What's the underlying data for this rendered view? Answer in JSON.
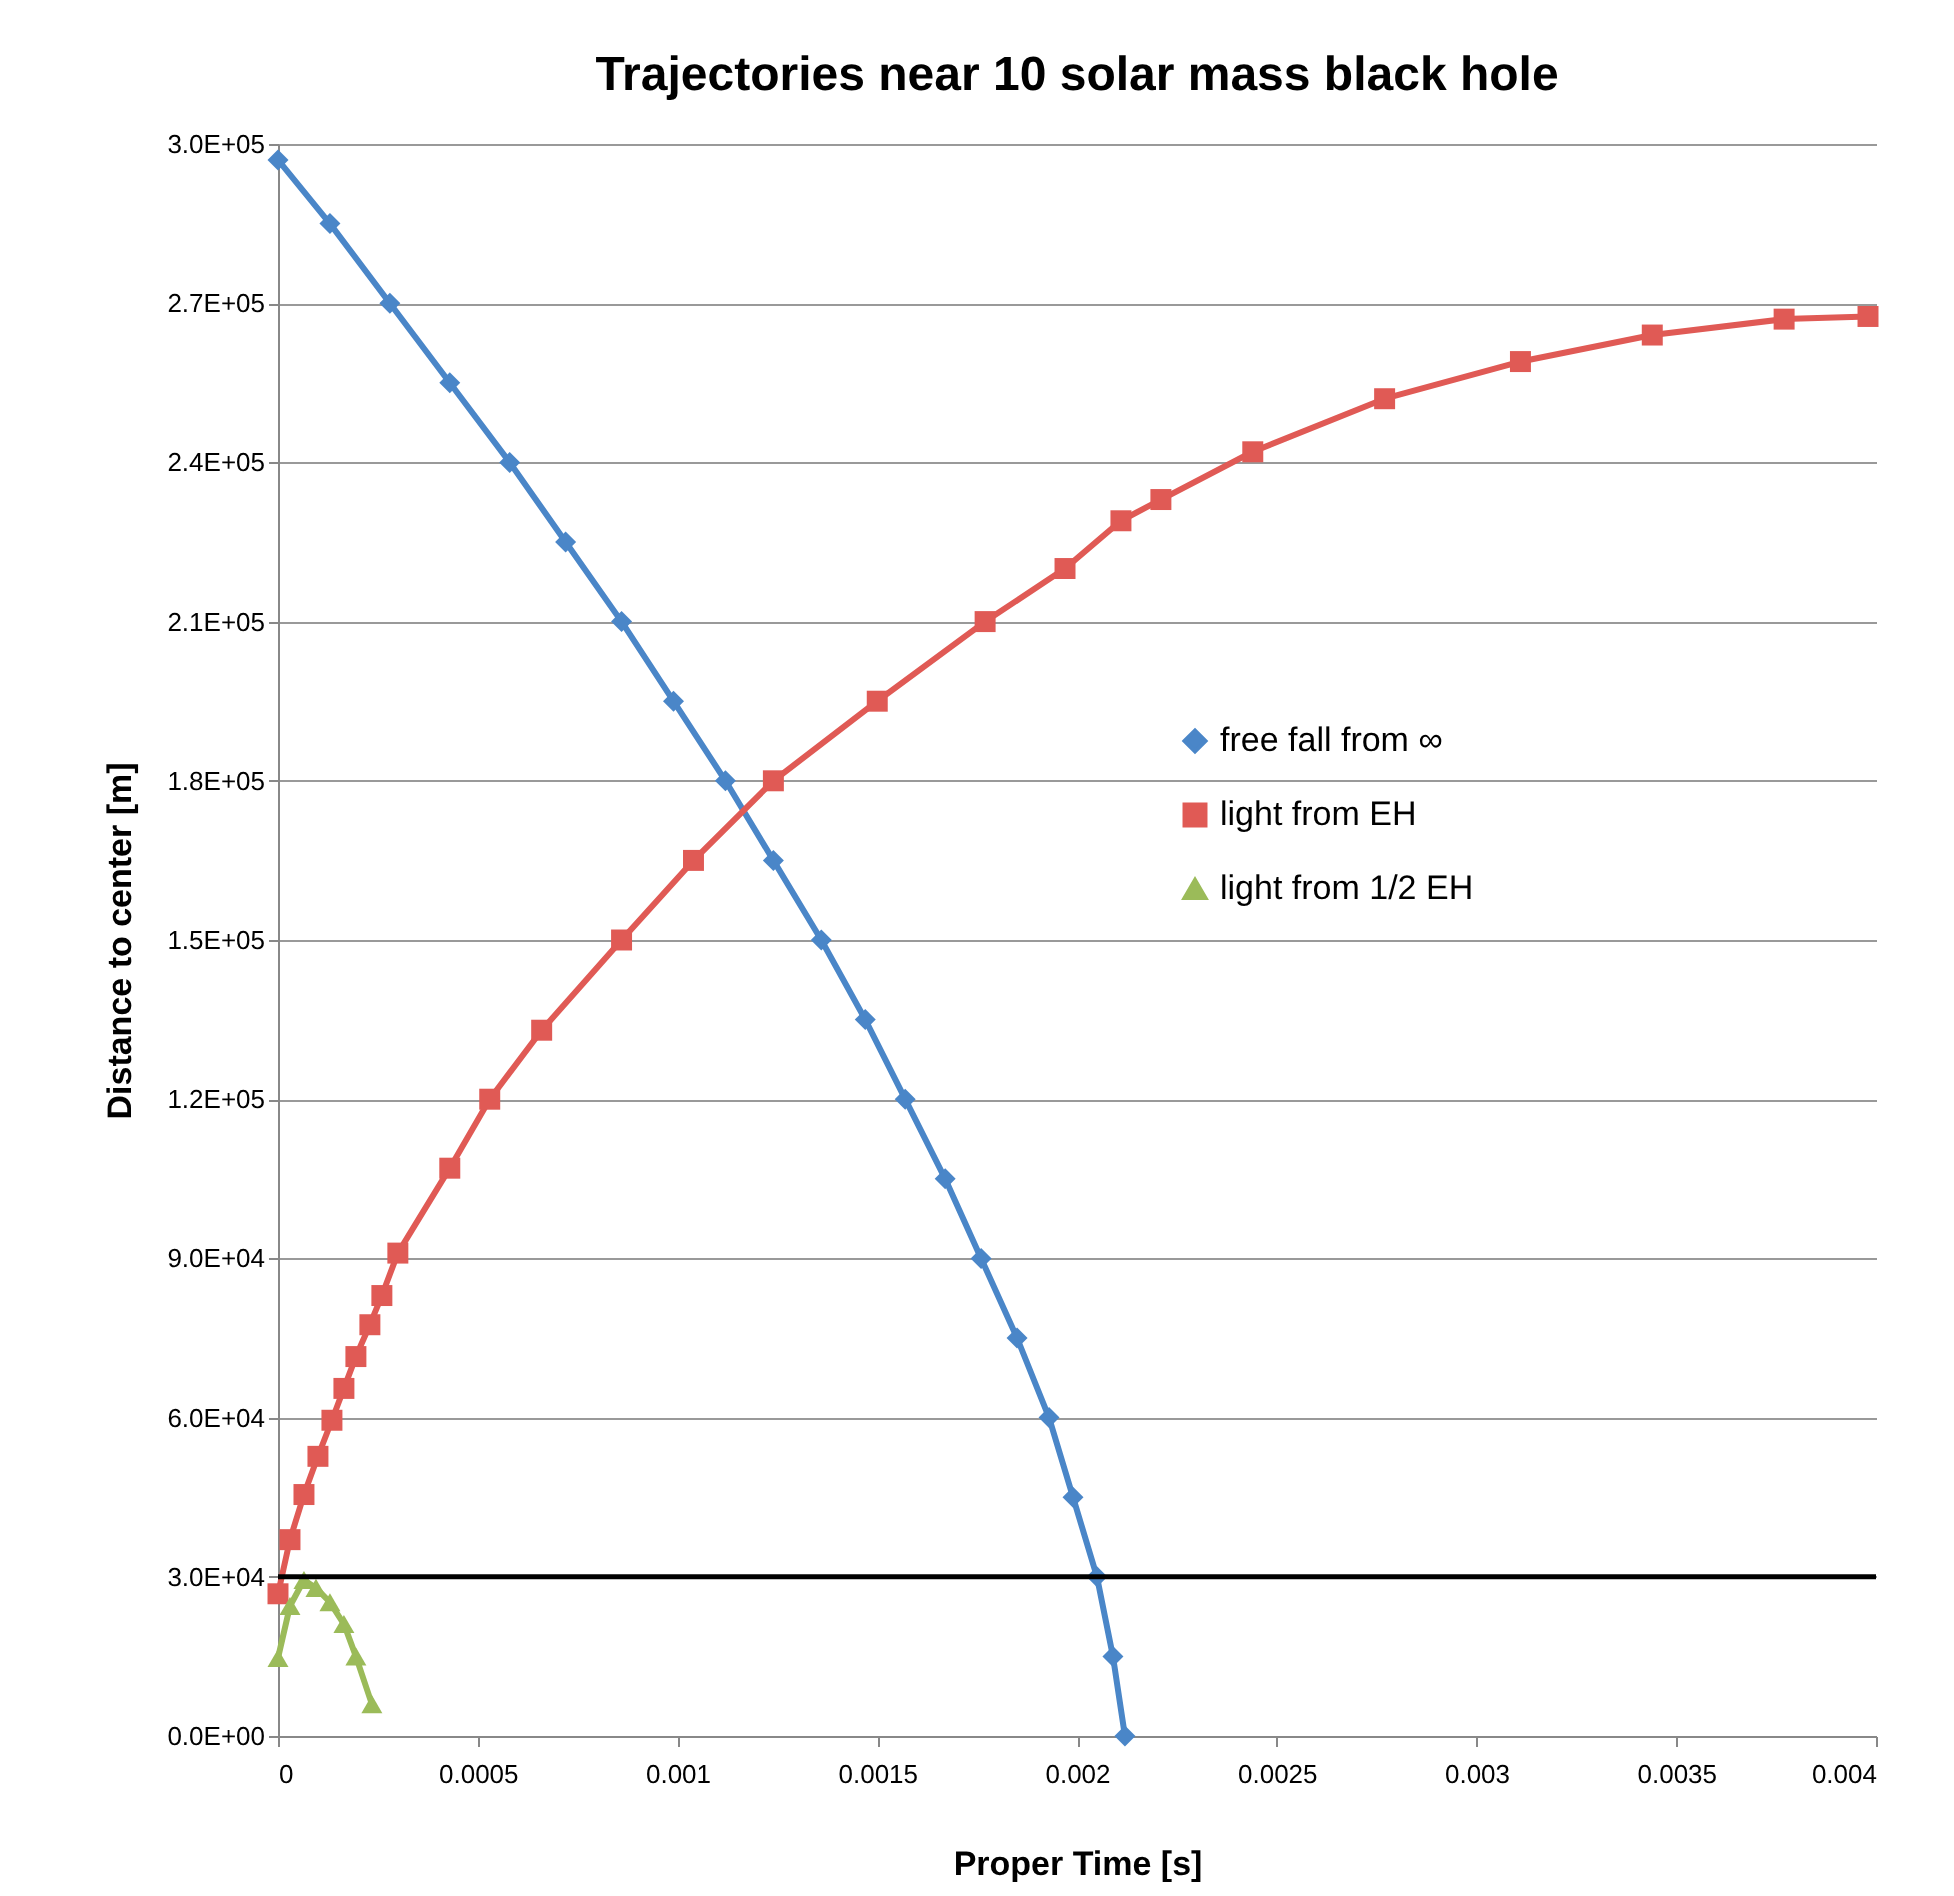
{
  "chart_data": {
    "type": "line",
    "title": "Trajectories near 10 solar mass black hole",
    "xlabel": "Proper Time [s]",
    "ylabel": "Distance to center [m]",
    "xlim": [
      0,
      0.004
    ],
    "xticks": [
      0,
      0.0005,
      0.001,
      0.0015,
      0.002,
      0.0025,
      0.003,
      0.0035,
      0.004
    ],
    "ylim": [
      0,
      300000
    ],
    "yticks": [
      {
        "value": 0,
        "label": "0.0E+00"
      },
      {
        "value": 30000,
        "label": "3.0E+04"
      },
      {
        "value": 60000,
        "label": "6.0E+04"
      },
      {
        "value": 90000,
        "label": "9.0E+04"
      },
      {
        "value": 120000,
        "label": "1.2E+05"
      },
      {
        "value": 150000,
        "label": "1.5E+05"
      },
      {
        "value": 180000,
        "label": "1.8E+05"
      },
      {
        "value": 210000,
        "label": "2.1E+05"
      },
      {
        "value": 240000,
        "label": "2.4E+05"
      },
      {
        "value": 270000,
        "label": "2.7E+05"
      },
      {
        "value": 300000,
        "label": "3.0E+05"
      }
    ],
    "grid": "y",
    "legend": "right",
    "line_style": "solid",
    "ref_lines": [
      {
        "axis": "y",
        "value": 30000,
        "color": "#000000"
      }
    ],
    "series": [
      {
        "name": "free fall from ∞",
        "color": "#4a86c8",
        "marker": "diamond",
        "x": [
          0,
          0.00013,
          0.00028,
          0.00043,
          0.00058,
          0.00072,
          0.00086,
          0.00099,
          0.00112,
          0.00124,
          0.00136,
          0.00147,
          0.00157,
          0.00167,
          0.00176,
          0.00185,
          0.00193,
          0.00199,
          0.00205,
          0.00209,
          0.00212
        ],
        "values": [
          297000,
          285000,
          270000,
          255000,
          240000,
          225000,
          210000,
          195000,
          180000,
          165000,
          150000,
          135000,
          120000,
          105000,
          90000,
          75000,
          60000,
          45000,
          30000,
          15000,
          0
        ]
      },
      {
        "name": "light from EH",
        "color": "#e05a55",
        "marker": "square",
        "x": [
          0,
          3e-05,
          6.5e-05,
          0.0001,
          0.000135,
          0.000165,
          0.000195,
          0.00023,
          0.00026,
          0.0003,
          0.00043,
          0.00053,
          0.00066,
          0.00086,
          0.00104,
          0.00124,
          0.0015,
          0.00177,
          0.00197,
          0.00211,
          0.00221,
          0.00244,
          0.00277,
          0.00311,
          0.00344,
          0.00377,
          0.00398
        ],
        "values": [
          26800,
          37000,
          45500,
          52700,
          59500,
          65500,
          71500,
          77500,
          83000,
          91000,
          107000,
          120000,
          133000,
          150000,
          165000,
          180000,
          195000,
          210000,
          220000,
          229000,
          233000,
          242000,
          252000,
          259000,
          264000,
          267000,
          267500
        ]
      },
      {
        "name": "light from 1/2 EH",
        "color": "#9bbb59",
        "marker": "triangle",
        "x": [
          0,
          3e-05,
          6.5e-05,
          9.5e-05,
          0.00013,
          0.000165,
          0.000195,
          0.000235
        ],
        "values": [
          14700,
          24500,
          29400,
          27900,
          25200,
          21100,
          15000,
          6000
        ]
      }
    ]
  }
}
